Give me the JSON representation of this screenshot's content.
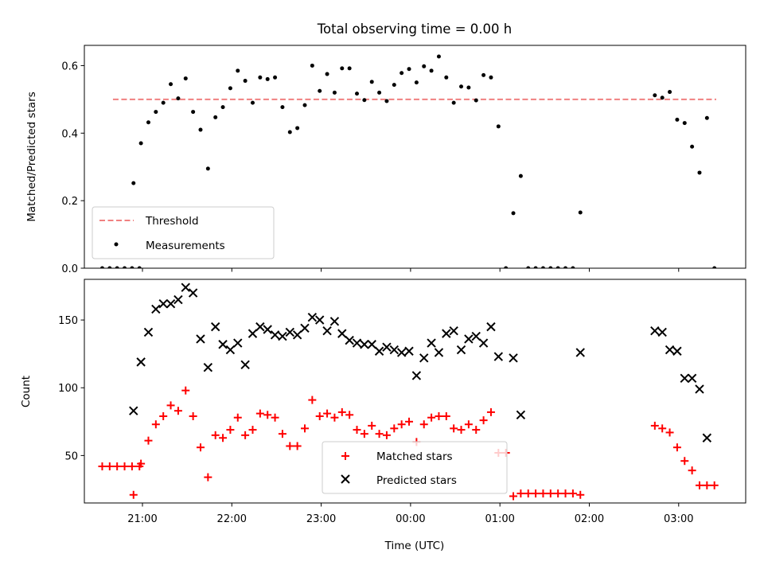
{
  "colors": {
    "threshold": "#f08080",
    "measurements": "#000000",
    "matched": "#ff0000",
    "predicted": "#000000"
  },
  "chart_data": [
    {
      "type": "scatter",
      "title": "Total observing time = 0.00 h",
      "xlabel": "",
      "ylabel": "Matched/Predicted stars",
      "xlim": [
        20.35,
        3.75
      ],
      "ylim": [
        0.0,
        0.66
      ],
      "yticks": [
        "0.0",
        "0.2",
        "0.4",
        "0.6"
      ],
      "ytick_values": [
        0.0,
        0.2,
        0.4,
        0.6
      ],
      "legend_position": "lower-left",
      "threshold": {
        "name": "Threshold",
        "value": 0.5,
        "x_start": 20.67,
        "x_end": 3.42
      },
      "series": [
        {
          "name": "Measurements",
          "points": [
            [
              "20:33",
              0.0
            ],
            [
              "20:38",
              0.0
            ],
            [
              "20:43",
              0.0
            ],
            [
              "20:48",
              0.0
            ],
            [
              "20:53",
              0.0
            ],
            [
              "20:58",
              0.0
            ],
            [
              "20:54",
              0.252
            ],
            [
              "20:59",
              0.37
            ],
            [
              "21:04",
              0.432
            ],
            [
              "21:09",
              0.463
            ],
            [
              "21:14",
              0.49
            ],
            [
              "21:19",
              0.545
            ],
            [
              "21:24",
              0.503
            ],
            [
              "21:29",
              0.562
            ],
            [
              "21:34",
              0.463
            ],
            [
              "21:39",
              0.41
            ],
            [
              "21:44",
              0.295
            ],
            [
              "21:49",
              0.447
            ],
            [
              "21:54",
              0.477
            ],
            [
              "21:59",
              0.533
            ],
            [
              "22:04",
              0.585
            ],
            [
              "22:09",
              0.555
            ],
            [
              "22:14",
              0.49
            ],
            [
              "22:19",
              0.565
            ],
            [
              "22:24",
              0.56
            ],
            [
              "22:29",
              0.565
            ],
            [
              "22:34",
              0.477
            ],
            [
              "22:39",
              0.403
            ],
            [
              "22:44",
              0.415
            ],
            [
              "22:49",
              0.483
            ],
            [
              "22:54",
              0.6
            ],
            [
              "22:59",
              0.525
            ],
            [
              "23:04",
              0.575
            ],
            [
              "23:09",
              0.52
            ],
            [
              "23:14",
              0.592
            ],
            [
              "23:19",
              0.592
            ],
            [
              "23:24",
              0.517
            ],
            [
              "23:29",
              0.498
            ],
            [
              "23:34",
              0.552
            ],
            [
              "23:39",
              0.52
            ],
            [
              "23:44",
              0.495
            ],
            [
              "23:49",
              0.543
            ],
            [
              "23:54",
              0.578
            ],
            [
              "23:59",
              0.59
            ],
            [
              "00:04",
              0.55
            ],
            [
              "00:09",
              0.598
            ],
            [
              "00:14",
              0.585
            ],
            [
              "00:19",
              0.627
            ],
            [
              "00:24",
              0.565
            ],
            [
              "00:29",
              0.49
            ],
            [
              "00:34",
              0.538
            ],
            [
              "00:39",
              0.535
            ],
            [
              "00:44",
              0.497
            ],
            [
              "00:49",
              0.572
            ],
            [
              "00:54",
              0.565
            ],
            [
              "00:59",
              0.42
            ],
            [
              "01:04",
              0.0
            ],
            [
              "01:09",
              0.163
            ],
            [
              "01:14",
              0.273
            ],
            [
              "01:19",
              0.0
            ],
            [
              "01:24",
              0.0
            ],
            [
              "01:29",
              0.0
            ],
            [
              "01:34",
              0.0
            ],
            [
              "01:39",
              0.0
            ],
            [
              "01:44",
              0.0
            ],
            [
              "01:49",
              0.0
            ],
            [
              "01:54",
              0.165
            ],
            [
              "02:44",
              0.512
            ],
            [
              "02:49",
              0.505
            ],
            [
              "02:54",
              0.522
            ],
            [
              "02:59",
              0.44
            ],
            [
              "03:04",
              0.43
            ],
            [
              "03:09",
              0.36
            ],
            [
              "03:14",
              0.283
            ],
            [
              "03:19",
              0.445
            ],
            [
              "03:24",
              0.0
            ]
          ]
        }
      ]
    },
    {
      "type": "scatter",
      "title": "",
      "xlabel": "Time (UTC)",
      "ylabel": "Count",
      "xlim": [
        20.35,
        3.75
      ],
      "ylim": [
        15,
        180
      ],
      "xticks": [
        "21:00",
        "22:00",
        "23:00",
        "00:00",
        "01:00",
        "02:00",
        "03:00"
      ],
      "yticks": [
        "50",
        "100",
        "150"
      ],
      "ytick_values": [
        50,
        100,
        150
      ],
      "legend_position": "lower-center",
      "series": [
        {
          "name": "Matched stars",
          "marker": "+",
          "points": [
            [
              "20:33",
              42
            ],
            [
              "20:38",
              42
            ],
            [
              "20:43",
              42
            ],
            [
              "20:48",
              42
            ],
            [
              "20:53",
              42
            ],
            [
              "20:58",
              42
            ],
            [
              "20:54",
              21
            ],
            [
              "20:59",
              44
            ],
            [
              "21:04",
              61
            ],
            [
              "21:09",
              73
            ],
            [
              "21:14",
              79
            ],
            [
              "21:19",
              87
            ],
            [
              "21:24",
              83
            ],
            [
              "21:29",
              98
            ],
            [
              "21:34",
              79
            ],
            [
              "21:39",
              56
            ],
            [
              "21:44",
              34
            ],
            [
              "21:49",
              65
            ],
            [
              "21:54",
              63
            ],
            [
              "21:59",
              69
            ],
            [
              "22:04",
              78
            ],
            [
              "22:09",
              65
            ],
            [
              "22:14",
              69
            ],
            [
              "22:19",
              81
            ],
            [
              "22:24",
              80
            ],
            [
              "22:29",
              78
            ],
            [
              "22:34",
              66
            ],
            [
              "22:39",
              57
            ],
            [
              "22:44",
              57
            ],
            [
              "22:49",
              70
            ],
            [
              "22:54",
              91
            ],
            [
              "22:59",
              79
            ],
            [
              "23:04",
              81
            ],
            [
              "23:09",
              78
            ],
            [
              "23:14",
              82
            ],
            [
              "23:19",
              80
            ],
            [
              "23:24",
              69
            ],
            [
              "23:29",
              66
            ],
            [
              "23:34",
              72
            ],
            [
              "23:39",
              66
            ],
            [
              "23:44",
              65
            ],
            [
              "23:49",
              70
            ],
            [
              "23:54",
              73
            ],
            [
              "23:59",
              75
            ],
            [
              "00:04",
              60
            ],
            [
              "00:09",
              73
            ],
            [
              "00:14",
              78
            ],
            [
              "00:19",
              79
            ],
            [
              "00:24",
              79
            ],
            [
              "00:29",
              70
            ],
            [
              "00:34",
              69
            ],
            [
              "00:39",
              73
            ],
            [
              "00:44",
              69
            ],
            [
              "00:49",
              76
            ],
            [
              "00:54",
              82
            ],
            [
              "00:59",
              52
            ],
            [
              "01:04",
              52
            ],
            [
              "01:09",
              20
            ],
            [
              "01:14",
              22
            ],
            [
              "01:19",
              22
            ],
            [
              "01:24",
              22
            ],
            [
              "01:29",
              22
            ],
            [
              "01:34",
              22
            ],
            [
              "01:39",
              22
            ],
            [
              "01:44",
              22
            ],
            [
              "01:49",
              22
            ],
            [
              "01:54",
              21
            ],
            [
              "02:44",
              72
            ],
            [
              "02:49",
              70
            ],
            [
              "02:54",
              67
            ],
            [
              "02:59",
              56
            ],
            [
              "03:04",
              46
            ],
            [
              "03:09",
              39
            ],
            [
              "03:14",
              28
            ],
            [
              "03:19",
              28
            ],
            [
              "03:24",
              28
            ]
          ]
        },
        {
          "name": "Predicted stars",
          "marker": "x",
          "points": [
            [
              "20:54",
              83
            ],
            [
              "20:59",
              119
            ],
            [
              "21:04",
              141
            ],
            [
              "21:09",
              158
            ],
            [
              "21:14",
              162
            ],
            [
              "21:19",
              162
            ],
            [
              "21:24",
              165
            ],
            [
              "21:29",
              174
            ],
            [
              "21:34",
              170
            ],
            [
              "21:39",
              136
            ],
            [
              "21:44",
              115
            ],
            [
              "21:49",
              145
            ],
            [
              "21:54",
              132
            ],
            [
              "21:59",
              128
            ],
            [
              "22:04",
              133
            ],
            [
              "22:09",
              117
            ],
            [
              "22:14",
              140
            ],
            [
              "22:19",
              145
            ],
            [
              "22:24",
              143
            ],
            [
              "22:29",
              139
            ],
            [
              "22:34",
              138
            ],
            [
              "22:39",
              141
            ],
            [
              "22:44",
              139
            ],
            [
              "22:49",
              144
            ],
            [
              "22:54",
              152
            ],
            [
              "22:59",
              150
            ],
            [
              "23:04",
              142
            ],
            [
              "23:09",
              149
            ],
            [
              "23:14",
              140
            ],
            [
              "23:19",
              135
            ],
            [
              "23:24",
              133
            ],
            [
              "23:29",
              132
            ],
            [
              "23:34",
              132
            ],
            [
              "23:39",
              127
            ],
            [
              "23:44",
              130
            ],
            [
              "23:49",
              128
            ],
            [
              "23:54",
              126
            ],
            [
              "23:59",
              127
            ],
            [
              "00:04",
              109
            ],
            [
              "00:09",
              122
            ],
            [
              "00:14",
              133
            ],
            [
              "00:19",
              126
            ],
            [
              "00:24",
              140
            ],
            [
              "00:29",
              142
            ],
            [
              "00:34",
              128
            ],
            [
              "00:39",
              136
            ],
            [
              "00:44",
              138
            ],
            [
              "00:49",
              133
            ],
            [
              "00:54",
              145
            ],
            [
              "00:59",
              123
            ],
            [
              "01:09",
              122
            ],
            [
              "01:14",
              80
            ],
            [
              "01:54",
              126
            ],
            [
              "02:44",
              142
            ],
            [
              "02:49",
              141
            ],
            [
              "02:54",
              128
            ],
            [
              "02:59",
              127
            ],
            [
              "03:04",
              107
            ],
            [
              "03:09",
              107
            ],
            [
              "03:14",
              99
            ],
            [
              "03:19",
              63
            ]
          ]
        }
      ]
    }
  ]
}
